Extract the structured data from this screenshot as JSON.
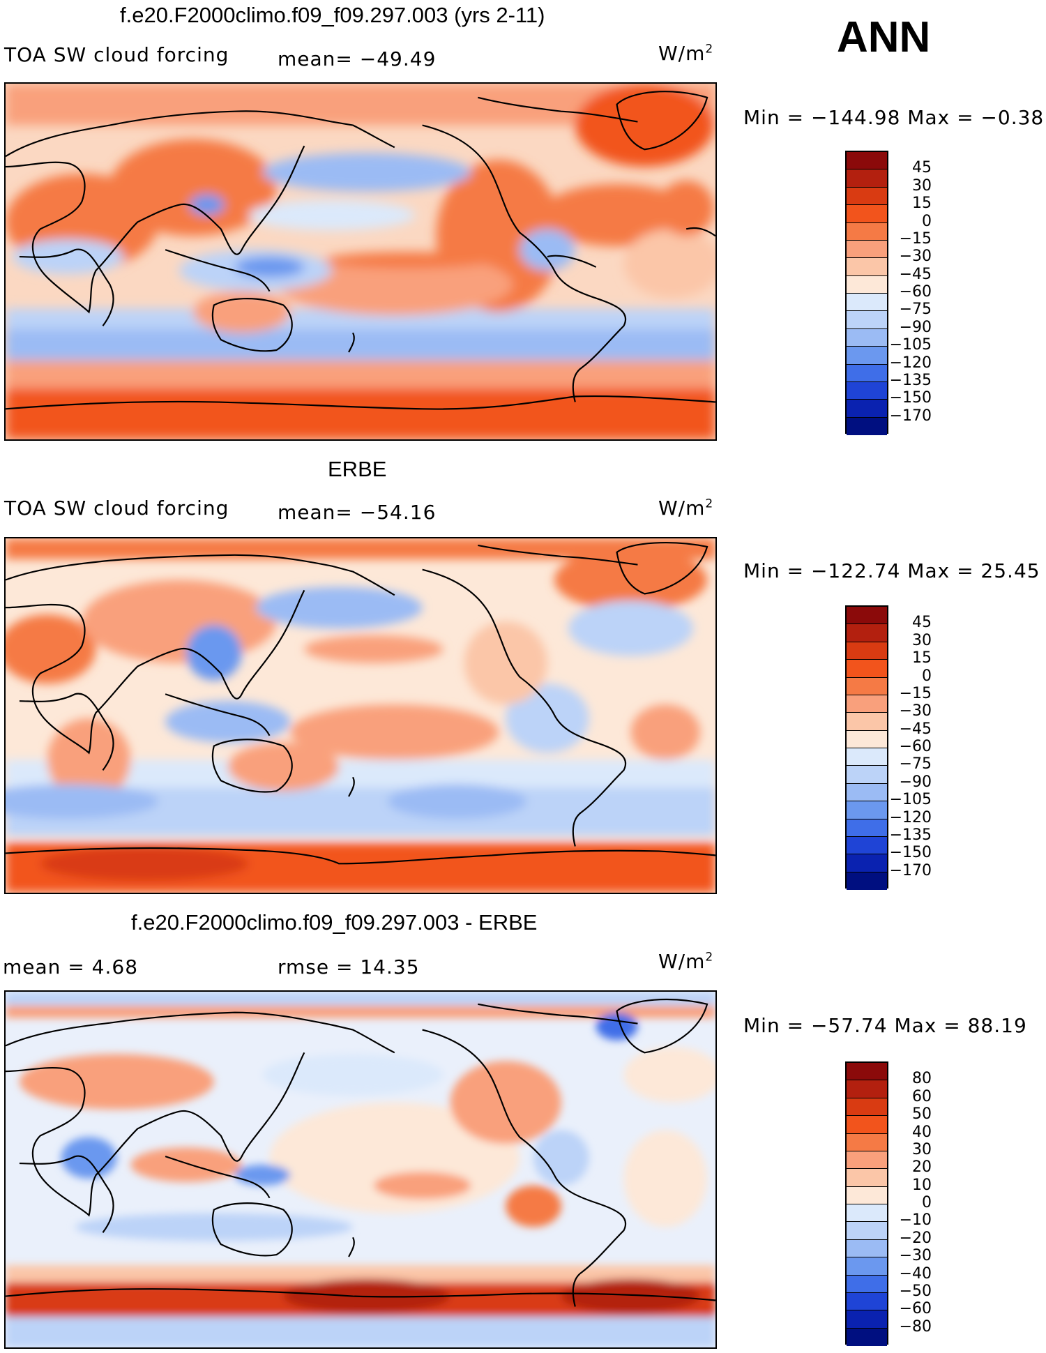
{
  "season": "ANN",
  "panels": [
    {
      "title": "f.e20.F2000climo.f09_f09.297.003 (yrs 2-11)",
      "left_label": "TOA SW cloud forcing",
      "stat": "mean= −49.49",
      "units": "W/m",
      "units_sup": "2",
      "range": "Min = −144.98 Max =   −0.38",
      "colorbar_labels": [
        "45",
        "30",
        "15",
        "0",
        "−15",
        "−30",
        "−45",
        "−60",
        "−75",
        "−90",
        "−105",
        "−120",
        "−135",
        "−150",
        "−170"
      ],
      "colorbar_colors": [
        "#8b0a0a",
        "#b3200f",
        "#d93b12",
        "#f2541c",
        "#f57a45",
        "#f9a07c",
        "#fbc6a8",
        "#fde8d8",
        "#dbe9fb",
        "#bcd3f8",
        "#9bbbf4",
        "#6b98ef",
        "#3f6ee8",
        "#1f44d6",
        "#0a22b0",
        "#000f80"
      ]
    },
    {
      "title": "ERBE",
      "left_label": "TOA SW cloud forcing",
      "stat": "mean= −54.16",
      "units": "W/m",
      "units_sup": "2",
      "range": "Min = −122.74 Max =   25.45",
      "colorbar_labels": [
        "45",
        "30",
        "15",
        "0",
        "−15",
        "−30",
        "−45",
        "−60",
        "−75",
        "−90",
        "−105",
        "−120",
        "−135",
        "−150",
        "−170"
      ],
      "colorbar_colors": [
        "#8b0a0a",
        "#b3200f",
        "#d93b12",
        "#f2541c",
        "#f57a45",
        "#f9a07c",
        "#fbc6a8",
        "#fde8d8",
        "#dbe9fb",
        "#bcd3f8",
        "#9bbbf4",
        "#6b98ef",
        "#3f6ee8",
        "#1f44d6",
        "#0a22b0",
        "#000f80"
      ]
    },
    {
      "title": "f.e20.F2000climo.f09_f09.297.003 - ERBE",
      "left_label": "mean =    4.68",
      "stat": "rmse =    14.35",
      "units": "W/m",
      "units_sup": "2",
      "range": "Min = −57.74 Max =   88.19",
      "colorbar_labels": [
        "80",
        "60",
        "50",
        "40",
        "30",
        "20",
        "10",
        "0",
        "−10",
        "−20",
        "−30",
        "−40",
        "−50",
        "−60",
        "−80"
      ],
      "colorbar_colors": [
        "#8b0a0a",
        "#b3200f",
        "#d93b12",
        "#f2541c",
        "#f57a45",
        "#f9a07c",
        "#fbc6a8",
        "#fde8d8",
        "#dbe9fb",
        "#bcd3f8",
        "#9bbbf4",
        "#6b98ef",
        "#3f6ee8",
        "#1f44d6",
        "#0a22b0",
        "#000f80"
      ]
    }
  ],
  "map_fields": {
    "ocean_base": [
      "#fbd0b6",
      "#fbe3d2",
      "#eef2fb"
    ],
    "band_colors": {
      "warm_strong": "#f2541c",
      "warm": "#f57a45",
      "warm_light": "#f9a07c",
      "neutral": "#fde8d8",
      "cool_light": "#dbe9fb",
      "cool": "#bcd3f8",
      "cool_med": "#9bbbf4",
      "cool_strong": "#6b98ef",
      "cool_dark": "#3f6ee8"
    }
  }
}
